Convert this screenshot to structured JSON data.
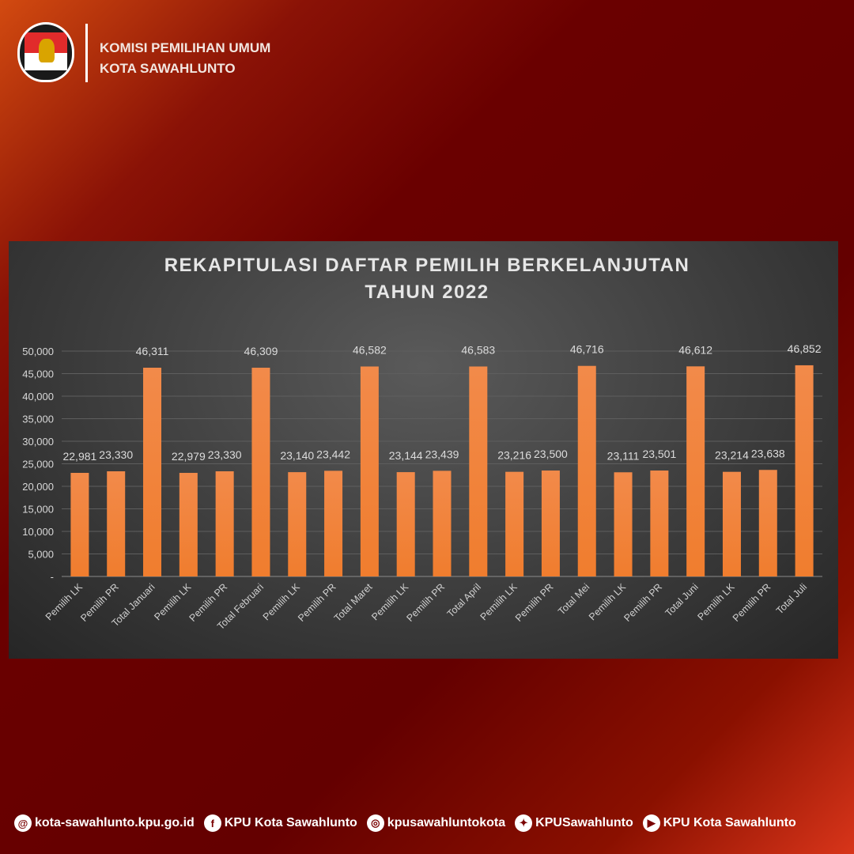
{
  "header": {
    "org_line1": "KOMISI PEMILIHAN UMUM",
    "org_line2": "KOTA SAWAHLUNTO",
    "logo_text": "KOMISI PEMILIHAN UMUM"
  },
  "chart_data": {
    "type": "bar",
    "title": "REKAPITULASI DAFTAR PEMILIH BERKELANJUTAN",
    "subtitle": "TAHUN 2022",
    "categories": [
      "Pemilih LK",
      "Pemilih PR",
      "Total Januari",
      "Pemilih LK",
      "Pemilih PR",
      "Total Februari",
      "Pemilih LK",
      "Pemilih PR",
      "Total Maret",
      "Pemilih LK",
      "Pemilih PR",
      "Total April",
      "Pemilih LK",
      "Pemilih PR",
      "Total Mei",
      "Pemilih LK",
      "Pemilih PR",
      "Total Juni",
      "Pemilih LK",
      "Pemilih PR",
      "Total Juli"
    ],
    "values": [
      22981,
      23330,
      46311,
      22979,
      23330,
      46309,
      23140,
      23442,
      46582,
      23144,
      23439,
      46583,
      23216,
      23500,
      46716,
      23111,
      23501,
      46612,
      23214,
      23638,
      46852
    ],
    "value_labels": [
      "22,981",
      "23,330",
      "46,311",
      "22,979",
      "23,330",
      "46,309",
      "23,140",
      "23,442",
      "46,582",
      "23,144",
      "23,439",
      "46,583",
      "23,216",
      "23,500",
      "46,716",
      "23,111",
      "23,501",
      "46,612",
      "23,214",
      "23,638",
      "46,852"
    ],
    "ylim": [
      0,
      50000
    ],
    "yticks": [
      0,
      5000,
      10000,
      15000,
      20000,
      25000,
      30000,
      35000,
      40000,
      45000,
      50000
    ],
    "ytick_labels": [
      "-",
      "5,000",
      "10,000",
      "15,000",
      "20,000",
      "25,000",
      "30,000",
      "35,000",
      "40,000",
      "45,000",
      "50,000"
    ],
    "grid": true,
    "bar_color": "#f07d2e",
    "xlabel": "",
    "ylabel": ""
  },
  "footer": {
    "items": [
      {
        "icon": "web-icon",
        "label": "kota-sawahlunto.kpu.go.id"
      },
      {
        "icon": "facebook-icon",
        "label": "KPU Kota Sawahlunto"
      },
      {
        "icon": "instagram-icon",
        "label": "kpusawahluntokota"
      },
      {
        "icon": "twitter-icon",
        "label": "KPUSawahlunto"
      },
      {
        "icon": "youtube-icon",
        "label": "KPU Kota Sawahlunto"
      }
    ]
  }
}
